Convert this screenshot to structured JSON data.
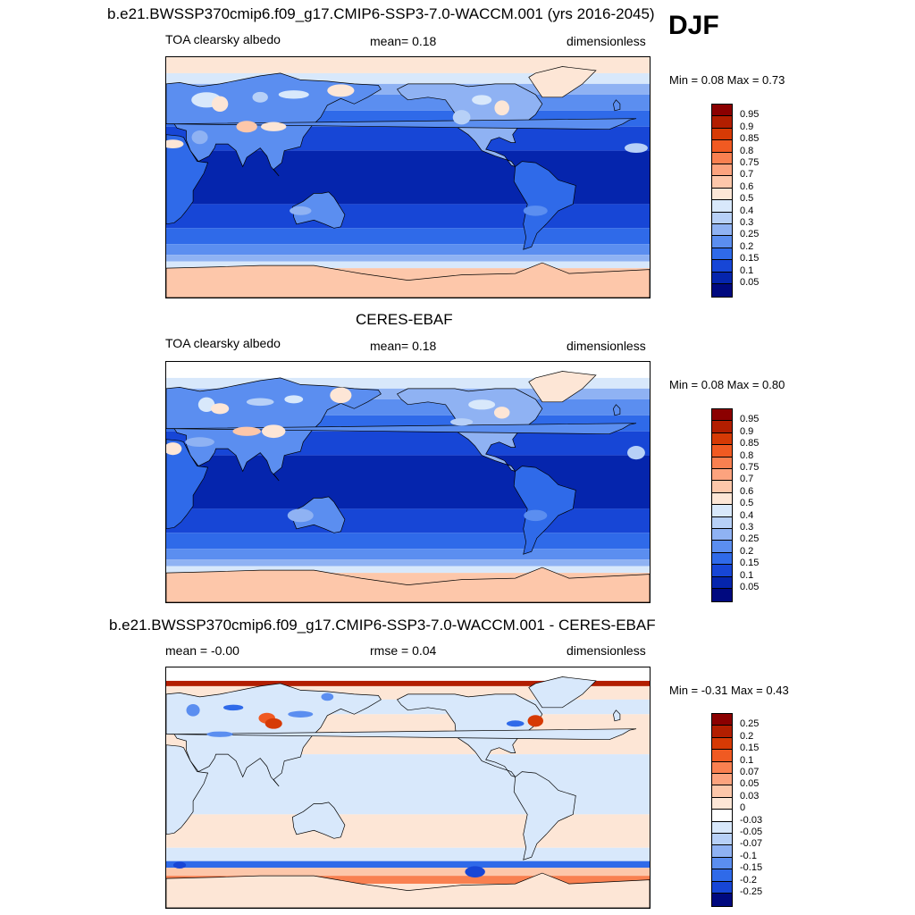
{
  "season": "DJF",
  "panels": [
    {
      "title": "b.e21.BWSSP370cmip6.f09_g17.CMIP6-SSP3-7.0-WACCM.001 (yrs 2016-2045)",
      "left_label": "TOA clearsky albedo",
      "center_label": "mean=   0.18",
      "right_label": "dimensionless",
      "minmax": "Min =   0.08 Max =   0.73",
      "type": "albedo"
    },
    {
      "title": "CERES-EBAF",
      "left_label": "TOA clearsky albedo",
      "center_label": "mean=   0.18",
      "right_label": "dimensionless",
      "minmax": "Min =   0.08 Max =   0.80",
      "type": "albedo"
    },
    {
      "title": "b.e21.BWSSP370cmip6.f09_g17.CMIP6-SSP3-7.0-WACCM.001 - CERES-EBAF",
      "left_label": "mean =  -0.00",
      "center_label": "rmse =   0.04",
      "right_label": "dimensionless",
      "minmax": "Min =  -0.31 Max =   0.43",
      "type": "diff"
    }
  ],
  "colorbars": {
    "albedo": {
      "levels": [
        "0.95",
        "0.9",
        "0.85",
        "0.8",
        "0.75",
        "0.7",
        "0.6",
        "0.5",
        "0.4",
        "0.3",
        "0.25",
        "0.2",
        "0.15",
        "0.1",
        "0.05"
      ],
      "colors": [
        "#8b0000",
        "#b21e00",
        "#d63a05",
        "#f05a22",
        "#f98050",
        "#fca37e",
        "#fdc7aa",
        "#fde6d6",
        "#d8e8fb",
        "#b7d0f7",
        "#8fb2f3",
        "#5b8ef0",
        "#2f6ae9",
        "#1746d6",
        "#0525ad",
        "#00097f"
      ]
    },
    "diff": {
      "levels": [
        "0.25",
        "0.2",
        "0.15",
        "0.1",
        "0.07",
        "0.05",
        "0.03",
        "0",
        "-0.03",
        "-0.05",
        "-0.07",
        "-0.1",
        "-0.15",
        "-0.2",
        "-0.25"
      ],
      "colors": [
        "#8b0000",
        "#b21e00",
        "#d63a05",
        "#f05a22",
        "#f98050",
        "#fca37e",
        "#fdc7aa",
        "#fde6d6",
        "#ffffff",
        "#d8e8fb",
        "#b7d0f7",
        "#8fb2f3",
        "#5b8ef0",
        "#2f6ae9",
        "#1746d6",
        "#00097f"
      ]
    }
  }
}
